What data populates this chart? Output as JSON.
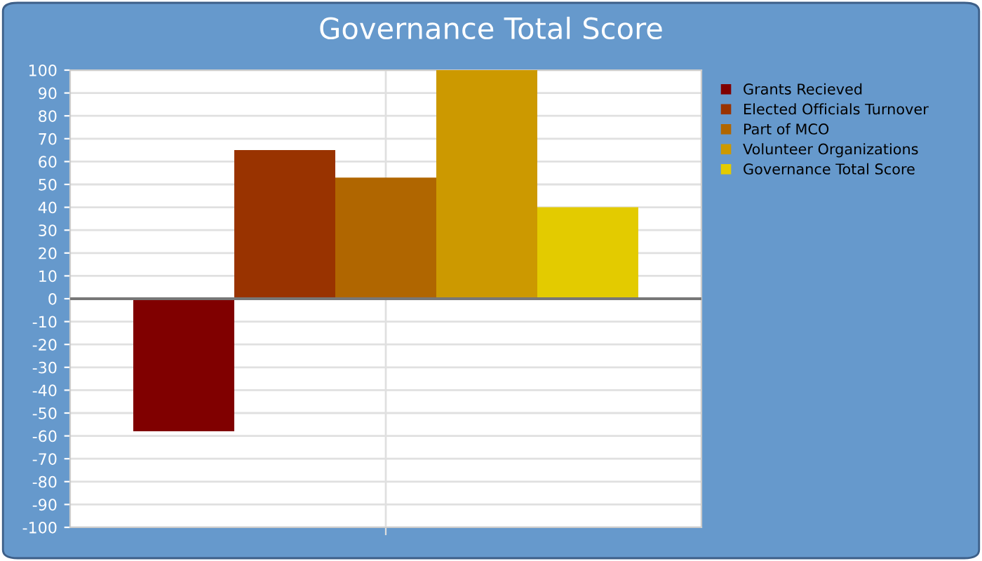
{
  "chart_data": {
    "type": "bar",
    "title": "Governance Total Score",
    "categories": [
      null
    ],
    "series": [
      {
        "name": "Grants Recieved",
        "color": "#800000",
        "values": [
          -58
        ]
      },
      {
        "name": "Elected Officials Turnover",
        "color": "#993300",
        "values": [
          65
        ]
      },
      {
        "name": "Part of MCO",
        "color": "#b06600",
        "values": [
          53
        ]
      },
      {
        "name": "Volunteer Organizations",
        "color": "#cc9900",
        "values": [
          100
        ]
      },
      {
        "name": "Governance Total Score",
        "color": "#e3cb00",
        "values": [
          40
        ]
      }
    ],
    "ylim": [
      -100,
      100
    ],
    "yticks": [
      -100,
      -90,
      -80,
      -70,
      -60,
      -50,
      -40,
      -30,
      -20,
      -10,
      0,
      10,
      20,
      30,
      40,
      50,
      60,
      70,
      80,
      90,
      100
    ],
    "grid": true,
    "legend": "right"
  }
}
